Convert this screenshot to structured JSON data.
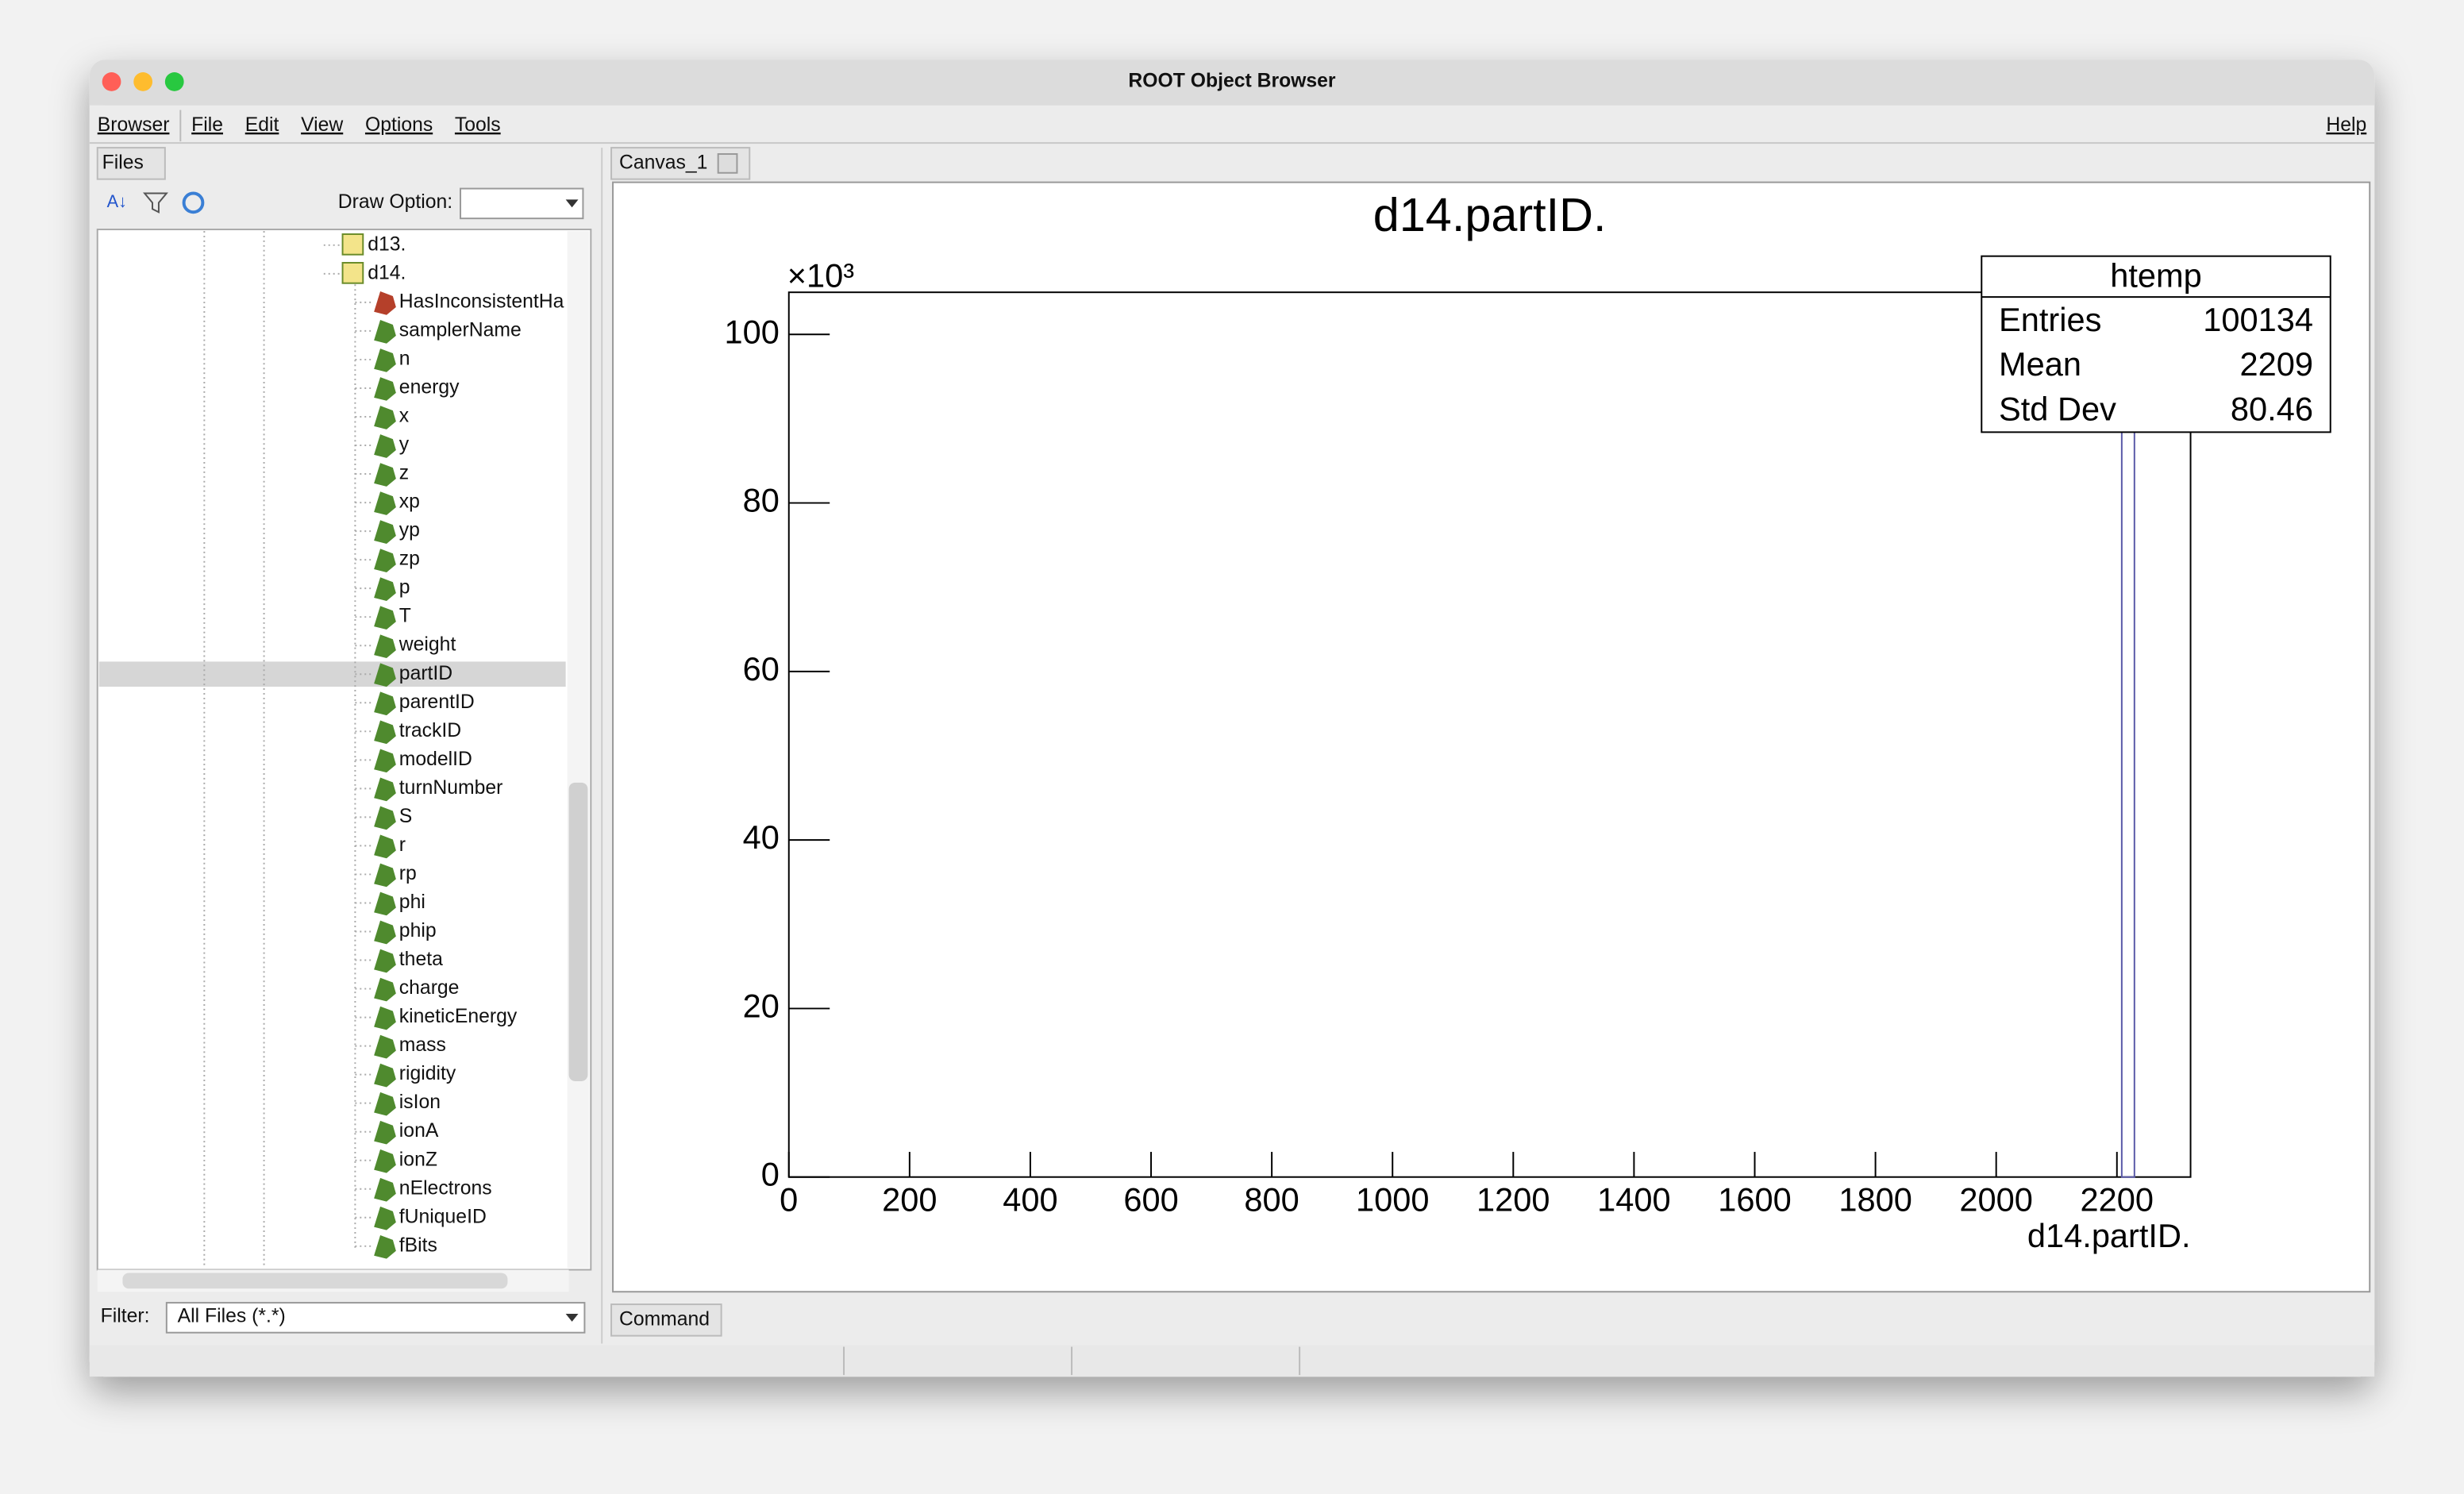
{
  "window": {
    "title": "ROOT Object Browser"
  },
  "menu": [
    "Browser",
    "File",
    "Edit",
    "View",
    "Options",
    "Tools"
  ],
  "help": "Help",
  "sidebar": {
    "tab": "Files",
    "draw_option_label": "Draw Option:",
    "filter_label": "Filter:",
    "filter_value": "All Files (*.*)",
    "tree": [
      "d13.",
      "d14.",
      "HasInconsistentHa",
      "samplerName",
      "n",
      "energy",
      "x",
      "y",
      "z",
      "xp",
      "yp",
      "zp",
      "p",
      "T",
      "weight",
      "partID",
      "parentID",
      "trackID",
      "modelID",
      "turnNumber",
      "S",
      "r",
      "rp",
      "phi",
      "phip",
      "theta",
      "charge",
      "kineticEnergy",
      "mass",
      "rigidity",
      "isIon",
      "ionA",
      "ionZ",
      "nElectrons",
      "fUniqueID",
      "fBits"
    ],
    "selected": "partID"
  },
  "canvas_tab": "Canvas_1",
  "command_tab": "Command",
  "chart_data": {
    "type": "histogram",
    "title": "d14.partID.",
    "x_label": "d14.partID.",
    "y_multiplier": "×10³",
    "bins": [
      2208,
      2229
    ],
    "values": [
      100.134
    ],
    "color": "#5a5aa8",
    "xlim": [
      0,
      2322
    ],
    "xticks": [
      0,
      200,
      400,
      600,
      800,
      1000,
      1200,
      1400,
      1600,
      1800,
      2000,
      2200
    ],
    "ylim": [
      0,
      105
    ],
    "yticks": [
      0,
      20,
      40,
      60,
      80,
      100
    ],
    "stats": {
      "title": "htemp",
      "rows": [
        [
          "Entries",
          "100134"
        ],
        [
          "Mean",
          "2209"
        ],
        [
          "Std Dev",
          "80.46"
        ]
      ]
    }
  }
}
